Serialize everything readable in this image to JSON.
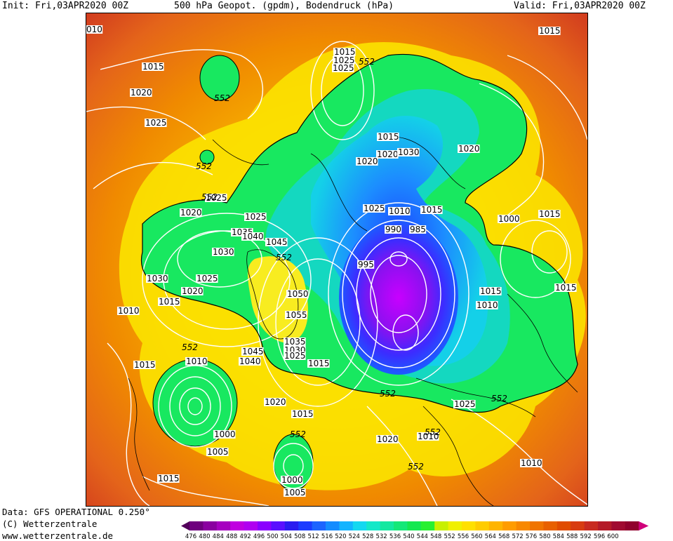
{
  "header": {
    "init": "Init: Fri,03APR2020 00Z",
    "title": "500 hPa Geopot. (gpdm), Bodendruck (hPa)",
    "valid": "Valid: Fri,03APR2020 00Z"
  },
  "footer": {
    "data_source": "Data: GFS OPERATIONAL 0.250°",
    "copyright": "(C) Wetterzentrale",
    "website": "www.wetterzentrale.de"
  },
  "colors": {
    "legend": [
      "#52005a",
      "#6e007e",
      "#8a00a0",
      "#a600c0",
      "#c000e0",
      "#b000f0",
      "#8a00ff",
      "#5a10ff",
      "#2a1cf0",
      "#1c3cff",
      "#1c64ff",
      "#148cff",
      "#14b4ff",
      "#14d8f0",
      "#14e8c8",
      "#14e8a0",
      "#14e878",
      "#14e850",
      "#28f030",
      "#c8f000",
      "#f0f000",
      "#ffe000",
      "#ffcc00",
      "#ffb400",
      "#ff9c00",
      "#f88800",
      "#f07400",
      "#e86000",
      "#e04c00",
      "#d83c10",
      "#c82a20",
      "#b41a28",
      "#a00a30",
      "#90002c",
      "#d0007a"
    ],
    "contour": "#ffffff",
    "coastline": "#000000"
  },
  "legend": {
    "ticks": [
      "476",
      "480",
      "484",
      "488",
      "492",
      "496",
      "500",
      "504",
      "508",
      "512",
      "516",
      "520",
      "524",
      "528",
      "532",
      "536",
      "540",
      "544",
      "548",
      "552",
      "556",
      "560",
      "564",
      "568",
      "572",
      "576",
      "580",
      "584",
      "588",
      "592",
      "596",
      "600"
    ]
  },
  "map": {
    "pressure_labels": [
      "010",
      "1015",
      "1015",
      "1020",
      "1025",
      "1025",
      "1020",
      "1025",
      "1035",
      "1040",
      "1045",
      "1030",
      "1030",
      "1025",
      "1020",
      "1015",
      "1010",
      "1050",
      "1055",
      "1045",
      "1040",
      "1035",
      "1030",
      "1025",
      "1015",
      "1015",
      "1010",
      "1020",
      "1015",
      "1000",
      "1005",
      "1000",
      "1005",
      "1015",
      "1020",
      "1010",
      "1010",
      "1015",
      "1015",
      "1010",
      "1015",
      "1020",
      "1030",
      "1020",
      "1015",
      "1010",
      "1000",
      "990",
      "985",
      "995",
      "1025",
      "1015",
      "1025",
      "1025",
      "1020",
      "1015",
      "1025",
      "1010",
      "1005"
    ],
    "height_labels": [
      "552",
      "552",
      "552",
      "552",
      "552",
      "552",
      "552",
      "552",
      "552",
      "552",
      "552"
    ]
  }
}
